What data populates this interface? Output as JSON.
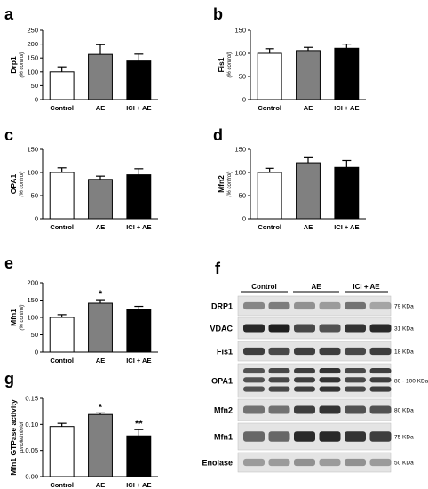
{
  "chart_data": [
    {
      "panel": "a",
      "type": "bar",
      "categories": [
        "Control",
        "AE",
        "ICI + AE"
      ],
      "values": [
        100,
        163,
        139
      ],
      "errors": [
        18,
        35,
        25
      ],
      "colors": [
        "#ffffff",
        "#808080",
        "#000000"
      ],
      "ylabel": "Drp1",
      "ysub": "(% control)",
      "ylim": [
        0,
        250
      ],
      "yticks": [
        "0",
        "50",
        "100",
        "150",
        "200",
        "250"
      ],
      "annotations": [
        "",
        "",
        ""
      ]
    },
    {
      "panel": "b",
      "type": "bar",
      "categories": [
        "Control",
        "AE",
        "ICI + AE"
      ],
      "values": [
        100,
        106,
        111
      ],
      "errors": [
        10,
        7,
        9
      ],
      "colors": [
        "#ffffff",
        "#808080",
        "#000000"
      ],
      "ylabel": "Fis1",
      "ysub": "(% control)",
      "ylim": [
        0,
        150
      ],
      "yticks": [
        "0",
        "50",
        "100",
        "150"
      ],
      "annotations": [
        "",
        "",
        ""
      ]
    },
    {
      "panel": "c",
      "type": "bar",
      "categories": [
        "Control",
        "AE",
        "ICI + AE"
      ],
      "values": [
        100,
        85,
        95
      ],
      "errors": [
        10,
        7,
        13
      ],
      "colors": [
        "#ffffff",
        "#808080",
        "#000000"
      ],
      "ylabel": "OPA1",
      "ysub": "(% control)",
      "ylim": [
        0,
        150
      ],
      "yticks": [
        "0",
        "50",
        "100",
        "150"
      ],
      "annotations": [
        "",
        "",
        ""
      ]
    },
    {
      "panel": "d",
      "type": "bar",
      "categories": [
        "Control",
        "AE",
        "ICI + AE"
      ],
      "values": [
        100,
        121,
        111
      ],
      "errors": [
        9,
        11,
        15
      ],
      "colors": [
        "#ffffff",
        "#808080",
        "#000000"
      ],
      "ylabel": "Mfn2",
      "ysub": "(% control)",
      "ylim": [
        0,
        150
      ],
      "yticks": [
        "0",
        "50",
        "100",
        "150"
      ],
      "annotations": [
        "",
        "",
        ""
      ]
    },
    {
      "panel": "e",
      "type": "bar",
      "categories": [
        "Control",
        "AE",
        "ICI + AE"
      ],
      "values": [
        100,
        141,
        123
      ],
      "errors": [
        8,
        10,
        9
      ],
      "colors": [
        "#ffffff",
        "#808080",
        "#000000"
      ],
      "ylabel": "Mfn1",
      "ysub": "(% control)",
      "ylim": [
        0,
        200
      ],
      "yticks": [
        "0",
        "50",
        "100",
        "150",
        "200"
      ],
      "annotations": [
        "",
        "*",
        ""
      ]
    },
    {
      "panel": "g",
      "type": "bar",
      "categories": [
        "Control",
        "AE",
        "ICI + AE"
      ],
      "values": [
        0.096,
        0.119,
        0.078
      ],
      "errors": [
        0.006,
        0.003,
        0.012
      ],
      "colors": [
        "#ffffff",
        "#808080",
        "#000000"
      ],
      "ylabel": "Mfn1 GTPase activity",
      "ysub": "µmole/min/ul",
      "ylim": [
        0,
        0.15
      ],
      "yticks": [
        "0.00",
        "0.05",
        "0.10",
        "0.15"
      ],
      "annotations": [
        "",
        "*",
        "**"
      ]
    }
  ],
  "western": {
    "panel": "f",
    "groups": [
      "Control",
      "AE",
      "ICI + AE"
    ],
    "proteins": [
      {
        "name": "DRP1",
        "size": "79 KDa"
      },
      {
        "name": "VDAC",
        "size": "31 KDa"
      },
      {
        "name": "Fis1",
        "size": "18 KDa"
      },
      {
        "name": "OPA1",
        "size": "80 - 100 KDa"
      },
      {
        "name": "Mfn2",
        "size": "80 KDa"
      },
      {
        "name": "Mfn1",
        "size": "75 KDa"
      },
      {
        "name": "Enolase",
        "size": "50 KDa"
      }
    ]
  }
}
